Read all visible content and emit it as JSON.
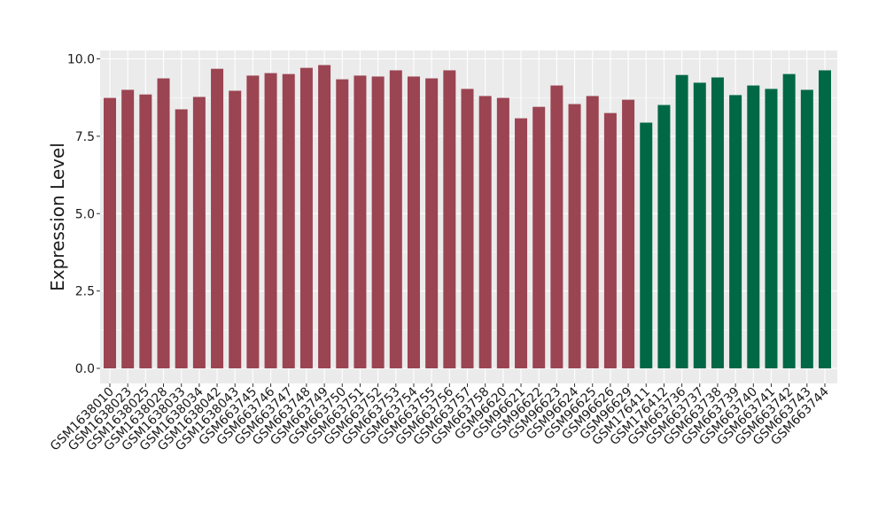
{
  "chart_data": {
    "type": "bar",
    "title": "",
    "xlabel": "",
    "ylabel": "Expression Level",
    "ylim": [
      0,
      10.27
    ],
    "yticks": [
      "0.0",
      "2.5",
      "5.0",
      "7.5",
      "10.0"
    ],
    "grid": true,
    "legend": "none",
    "colors": {
      "group1": "#9b4452",
      "group2": "#006845",
      "panel": "#ebebeb",
      "grid": "#ffffff"
    },
    "categories": [
      "GSM1638010",
      "GSM1638023",
      "GSM1638025",
      "GSM1638028",
      "GSM1638033",
      "GSM1638034",
      "GSM1638042",
      "GSM1638043",
      "GSM663745",
      "GSM663746",
      "GSM663747",
      "GSM663748",
      "GSM663749",
      "GSM663750",
      "GSM663751",
      "GSM663752",
      "GSM663753",
      "GSM663754",
      "GSM663755",
      "GSM663756",
      "GSM663757",
      "GSM663758",
      "GSM96620",
      "GSM96621",
      "GSM96622",
      "GSM96623",
      "GSM96624",
      "GSM96625",
      "GSM96626",
      "GSM96629",
      "GSM176411",
      "GSM176412",
      "GSM663736",
      "GSM663737",
      "GSM663738",
      "GSM663739",
      "GSM663740",
      "GSM663741",
      "GSM663742",
      "GSM663743",
      "GSM663744"
    ],
    "values": [
      8.74,
      9.0,
      8.85,
      9.37,
      8.37,
      8.77,
      9.68,
      8.97,
      9.46,
      9.54,
      9.51,
      9.71,
      9.8,
      9.34,
      9.46,
      9.43,
      9.63,
      9.43,
      9.37,
      9.63,
      9.03,
      8.8,
      8.74,
      8.08,
      8.45,
      9.14,
      8.54,
      8.8,
      8.25,
      8.68,
      7.94,
      8.51,
      9.48,
      9.23,
      9.4,
      8.83,
      9.14,
      9.03,
      9.51,
      9.0,
      9.63
    ],
    "groups": [
      "group1",
      "group1",
      "group1",
      "group1",
      "group1",
      "group1",
      "group1",
      "group1",
      "group1",
      "group1",
      "group1",
      "group1",
      "group1",
      "group1",
      "group1",
      "group1",
      "group1",
      "group1",
      "group1",
      "group1",
      "group1",
      "group1",
      "group1",
      "group1",
      "group1",
      "group1",
      "group1",
      "group1",
      "group1",
      "group1",
      "group2",
      "group2",
      "group2",
      "group2",
      "group2",
      "group2",
      "group2",
      "group2",
      "group2",
      "group2",
      "group2"
    ]
  }
}
